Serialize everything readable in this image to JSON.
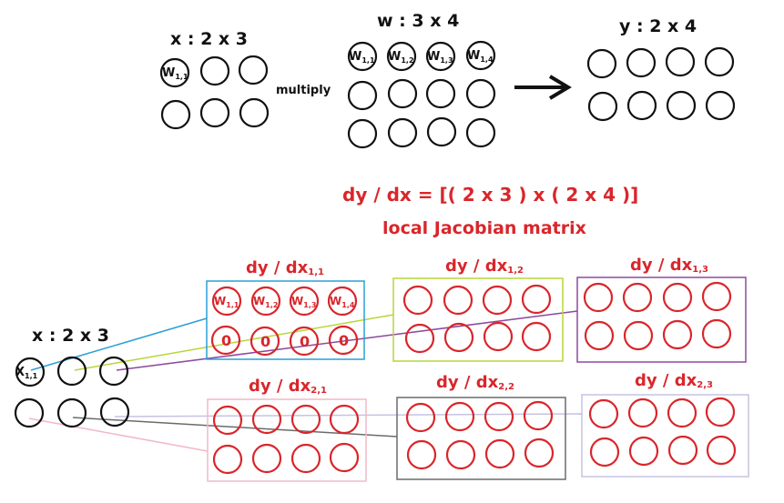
{
  "top": {
    "x_title": "x :  2 x 3",
    "w_title": "w :  3 x 4",
    "y_title": "y :  2 x 4",
    "multiply": "multiply",
    "arrow": "⟶",
    "x_first_label": {
      "base": "W",
      "sub": "1,1"
    },
    "w_row_labels": [
      {
        "base": "W",
        "sub": "1,1"
      },
      {
        "base": "W",
        "sub": "1,2"
      },
      {
        "base": "W",
        "sub": "1,3"
      },
      {
        "base": "W",
        "sub": "1,4"
      }
    ]
  },
  "formula": "dy / dx = [( 2 x 3 ) x ( 2 x 4 )]",
  "subtitle": "local Jacobian matrix",
  "bottom": {
    "x_title": "x :  2 x 3",
    "x_first_label": {
      "base": "X",
      "sub": "1,1"
    },
    "blocks": [
      {
        "title": "dy / dx",
        "sub": "1,1",
        "border": "#2a9fd6"
      },
      {
        "title": "dy / dx",
        "sub": "1,2",
        "border": "#b7d63a"
      },
      {
        "title": "dy / dx",
        "sub": "1,3",
        "border": "#8e4a9e"
      },
      {
        "title": "dy / dx",
        "sub": "2,1",
        "border": "#f2b8c6"
      },
      {
        "title": "dy / dx",
        "sub": "2,2",
        "border": "#6b6b6b"
      },
      {
        "title": "dy / dx",
        "sub": "2,3",
        "border": "#c6c3e2"
      }
    ],
    "block1_row1": [
      {
        "base": "W",
        "sub": "1,1"
      },
      {
        "base": "W",
        "sub": "1,2"
      },
      {
        "base": "W",
        "sub": "1,3"
      },
      {
        "base": "W",
        "sub": "1,4"
      }
    ],
    "block1_row2": [
      "0",
      "0",
      "0",
      "0"
    ]
  },
  "colors": {
    "red": "#d9262b",
    "black": "#111111"
  }
}
